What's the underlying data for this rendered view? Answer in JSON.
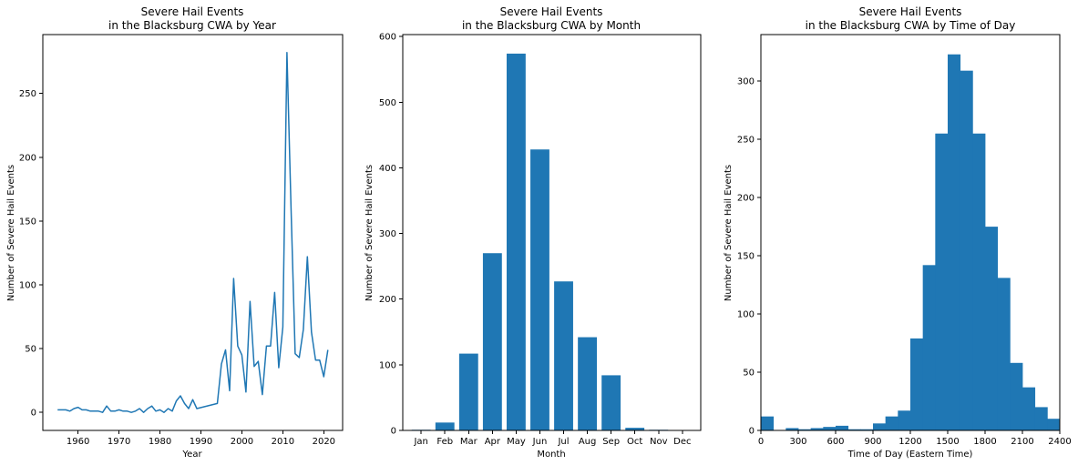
{
  "chart_data": [
    {
      "type": "line",
      "title": "Severe Hail Events\nin the Blacksburg CWA by Year",
      "xlabel": "Year",
      "ylabel": "Number of Severe Hail Events",
      "xlim": [
        1951.4,
        2024.6
      ],
      "ylim": [
        -14.1,
        296.1
      ],
      "xticks": [
        1960,
        1970,
        1980,
        1990,
        2000,
        2010,
        2020
      ],
      "yticks": [
        0,
        50,
        100,
        150,
        200,
        250
      ],
      "x": [
        1955,
        1956,
        1957,
        1958,
        1959,
        1960,
        1961,
        1962,
        1963,
        1964,
        1965,
        1966,
        1967,
        1968,
        1969,
        1970,
        1971,
        1972,
        1973,
        1974,
        1975,
        1976,
        1977,
        1978,
        1979,
        1980,
        1981,
        1982,
        1983,
        1984,
        1985,
        1986,
        1987,
        1988,
        1989,
        1994,
        1995,
        1996,
        1997,
        1998,
        1999,
        2000,
        2001,
        2002,
        2003,
        2004,
        2005,
        2006,
        2007,
        2008,
        2009,
        2010,
        2011,
        2012,
        2013,
        2014,
        2015,
        2016,
        2017,
        2018,
        2019,
        2020,
        2021
      ],
      "y": [
        2,
        2,
        2,
        1,
        3,
        4,
        2,
        2,
        1,
        1,
        1,
        0,
        5,
        1,
        1,
        2,
        1,
        1,
        0,
        1,
        3,
        0,
        3,
        5,
        1,
        2,
        0,
        3,
        1,
        9,
        13,
        7,
        3,
        10,
        3,
        7,
        38,
        49,
        17,
        105,
        52,
        45,
        16,
        87,
        36,
        40,
        14,
        52,
        52,
        94,
        35,
        67,
        282,
        160,
        46,
        43,
        65,
        122,
        63,
        41,
        41,
        28,
        49
      ],
      "series": [
        {
          "color": "#1f77b4"
        }
      ]
    },
    {
      "type": "bar",
      "title": "Severe Hail Events\nin the Blacksburg CWA by Month",
      "xlabel": "Month",
      "ylabel": "Number of Severe Hail Events",
      "ylim": [
        0,
        603
      ],
      "yticks": [
        0,
        100,
        200,
        300,
        400,
        500,
        600
      ],
      "categories": [
        "Jan",
        "Feb",
        "Mar",
        "Apr",
        "May",
        "Jun",
        "Jul",
        "Aug",
        "Sep",
        "Oct",
        "Nov",
        "Dec"
      ],
      "values": [
        1,
        12,
        117,
        270,
        574,
        428,
        227,
        142,
        84,
        4,
        1,
        0
      ],
      "color": "#1f77b4"
    },
    {
      "type": "bar",
      "title": "Severe Hail Events\nin the Blacksburg CWA by Time of Day",
      "xlabel": "Time of Day (Eastern Time)",
      "ylabel": "Number of Severe Hail Events",
      "xlim": [
        0,
        2400
      ],
      "ylim": [
        0,
        340
      ],
      "xticks": [
        0,
        300,
        600,
        900,
        1200,
        1500,
        1800,
        2100,
        2400
      ],
      "yticks": [
        0,
        50,
        100,
        150,
        200,
        250,
        300
      ],
      "bin_edges": [
        0,
        100,
        200,
        300,
        400,
        500,
        600,
        700,
        800,
        900,
        1000,
        1100,
        1200,
        1300,
        1400,
        1500,
        1600,
        1700,
        1800,
        1900,
        2000,
        2100,
        2200,
        2300,
        2400
      ],
      "values": [
        12,
        0,
        2,
        1,
        2,
        3,
        4,
        1,
        1,
        6,
        12,
        17,
        79,
        142,
        255,
        323,
        309,
        255,
        175,
        131,
        58,
        37,
        20,
        10
      ],
      "color": "#1f77b4"
    }
  ]
}
